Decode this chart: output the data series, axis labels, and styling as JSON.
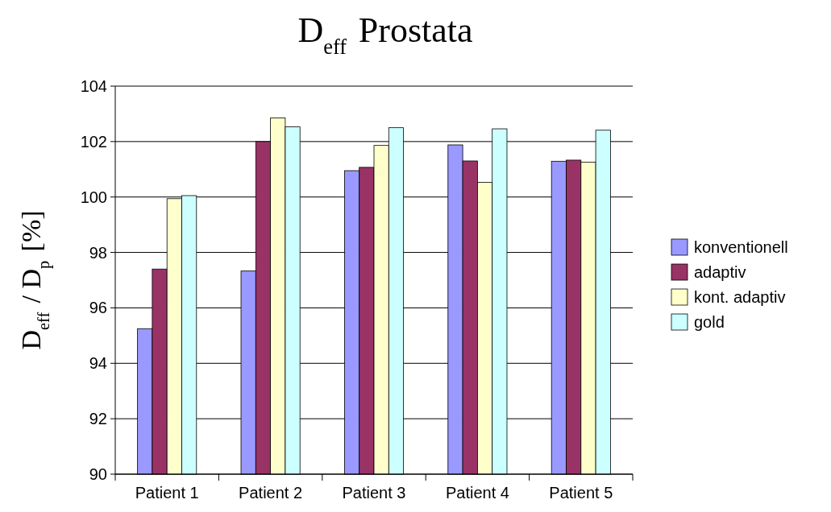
{
  "chart_data": {
    "type": "bar",
    "title": "D$_{eff}$ Prostata",
    "ylabel": "D$_{eff}$ / D$_{p}$ [%]",
    "categories": [
      "Patient 1",
      "Patient 2",
      "Patient 3",
      "Patient 4",
      "Patient 5"
    ],
    "series": [
      {
        "name": "konventionell",
        "color": "#9999ff",
        "values": [
          95.25,
          97.33,
          100.95,
          101.88,
          101.29
        ]
      },
      {
        "name": "adaptiv",
        "color": "#993366",
        "values": [
          97.4,
          102.0,
          101.07,
          101.3,
          101.33
        ]
      },
      {
        "name": "kont. adaptiv",
        "color": "#ffffcc",
        "values": [
          99.94,
          102.85,
          101.86,
          100.53,
          101.26
        ]
      },
      {
        "name": "gold",
        "color": "#ccffff",
        "values": [
          100.05,
          102.53,
          102.5,
          102.46,
          102.41
        ]
      }
    ],
    "ylim": [
      90,
      104
    ],
    "yticks": [
      90,
      92,
      94,
      96,
      98,
      100,
      102,
      104
    ],
    "grid": "y",
    "legend": "right"
  }
}
